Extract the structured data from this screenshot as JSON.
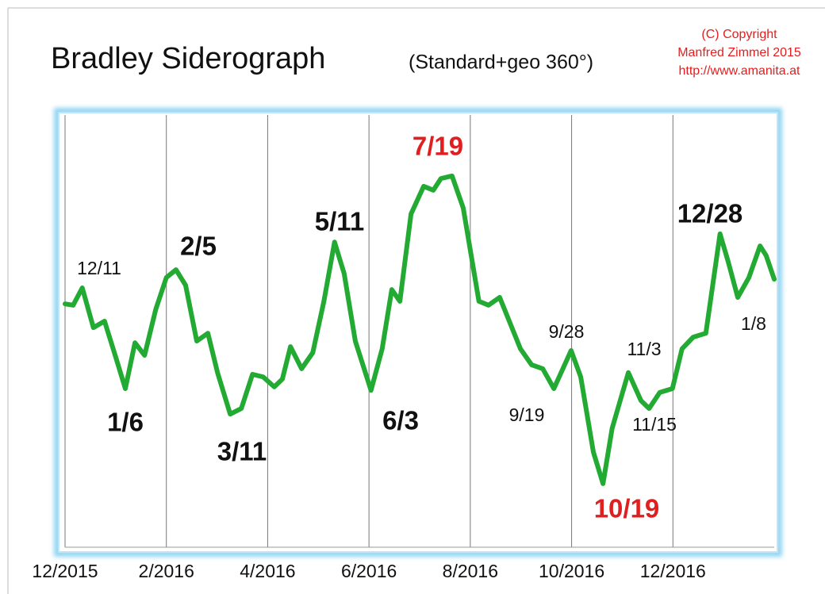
{
  "chart_data": {
    "type": "line",
    "title": "Bradley Siderograph",
    "subtitle": "(Standard+geo 360°)",
    "copyright": [
      "(C) Copyright",
      "Manfred Zimmel  2015",
      "http://www.amanita.at"
    ],
    "x": [
      0,
      0.16,
      0.34,
      0.56,
      0.78,
      1.0,
      1.19,
      1.38,
      1.57,
      1.79,
      2.0,
      2.19,
      2.38,
      2.6,
      2.82,
      3.01,
      3.26,
      3.48,
      3.7,
      3.91,
      4.13,
      4.29,
      4.45,
      4.67,
      4.89,
      5.11,
      5.32,
      5.51,
      5.73,
      6.04,
      6.26,
      6.45,
      6.61,
      6.83,
      7.08,
      7.27,
      7.42,
      7.64,
      7.86,
      8.17,
      8.36,
      8.58,
      8.77,
      8.99,
      9.21,
      9.43,
      9.65,
      9.99,
      10.18,
      10.43,
      10.62,
      10.8,
      11.12,
      11.37,
      11.53,
      11.74,
      11.99,
      12.18,
      12.4,
      12.65,
      12.93,
      13.09,
      13.28,
      13.5,
      13.72,
      13.84,
      14.0
    ],
    "series": [
      {
        "color": "#22aa33",
        "values": [
          56.3,
          56.0,
          60.0,
          50.8,
          52.3,
          44.0,
          36.7,
          47.3,
          44.4,
          55.0,
          62.4,
          64.2,
          60.6,
          47.7,
          49.5,
          40.4,
          30.8,
          32.1,
          40.0,
          39.4,
          37.1,
          38.9,
          46.4,
          41.3,
          45.0,
          56.9,
          70.6,
          63.3,
          47.7,
          36.3,
          45.9,
          59.6,
          56.9,
          77.1,
          83.5,
          82.6,
          85.3,
          85.9,
          78.5,
          56.9,
          56.0,
          57.8,
          52.3,
          45.9,
          42.2,
          41.3,
          36.7,
          45.5,
          39.4,
          22.0,
          14.7,
          27.5,
          40.4,
          33.9,
          32.1,
          35.8,
          36.7,
          45.9,
          48.6,
          49.5,
          72.5,
          66.1,
          57.8,
          62.4,
          69.7,
          67.5,
          62.0
        ]
      }
    ],
    "xlim": [
      0,
      14
    ],
    "ylim": [
      0,
      100
    ],
    "xticks": [
      {
        "value": 0,
        "label": "12/2015"
      },
      {
        "value": 2,
        "label": "2/2016"
      },
      {
        "value": 4,
        "label": "4/2016"
      },
      {
        "value": 6,
        "label": "6/2016"
      },
      {
        "value": 8,
        "label": "8/2016"
      },
      {
        "value": 10,
        "label": "10/2016"
      },
      {
        "value": 12,
        "label": "12/2016"
      }
    ],
    "grid": true,
    "annotations": [
      {
        "text": "12/11",
        "color": "#111111",
        "bold": false
      },
      {
        "text": "2/5",
        "color": "#111111",
        "bold": true
      },
      {
        "text": "1/6",
        "color": "#111111",
        "bold": true
      },
      {
        "text": "3/11",
        "color": "#111111",
        "bold": true
      },
      {
        "text": "5/11",
        "color": "#111111",
        "bold": true
      },
      {
        "text": "6/3",
        "color": "#111111",
        "bold": true
      },
      {
        "text": "7/19",
        "color": "#e02020",
        "bold": true
      },
      {
        "text": "9/28",
        "color": "#111111",
        "bold": false
      },
      {
        "text": "9/19",
        "color": "#111111",
        "bold": false
      },
      {
        "text": "10/19",
        "color": "#e02020",
        "bold": true
      },
      {
        "text": "11/3",
        "color": "#111111",
        "bold": false
      },
      {
        "text": "11/15",
        "color": "#111111",
        "bold": false
      },
      {
        "text": "12/28",
        "color": "#111111",
        "bold": true
      },
      {
        "text": "1/8",
        "color": "#111111",
        "bold": false
      }
    ]
  }
}
